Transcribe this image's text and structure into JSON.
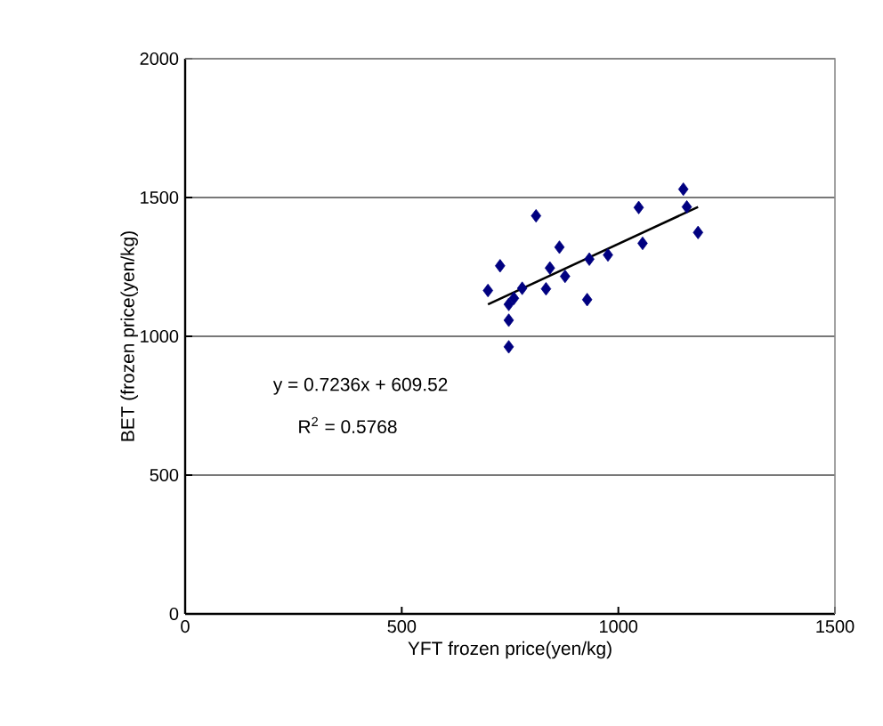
{
  "chart_data": {
    "type": "scatter",
    "xlabel": "YFT frozen price(yen/kg)",
    "ylabel": "BET (frozen price(yen/kg)",
    "xlim": [
      0,
      1500
    ],
    "ylim": [
      0,
      2000
    ],
    "xticks": [
      0,
      500,
      1000,
      1500
    ],
    "yticks": [
      0,
      500,
      1000,
      1500,
      2000
    ],
    "grid": "y",
    "marker": "diamond",
    "annotations": [
      "y = 0.7236x + 609.52",
      "R$^{2}$ = 0.5768"
    ],
    "series": [
      {
        "color": "#000080",
        "x": [
          699,
          727,
          810,
          747,
          759,
          747,
          747,
          778,
          833,
          842,
          864,
          877,
          933,
          928,
          976,
          1047,
          1056,
          1150,
          1158,
          1184
        ],
        "values": [
          1165,
          1254,
          1434,
          1115,
          1137,
          1058,
          962,
          1173,
          1171,
          1246,
          1321,
          1216,
          1278,
          1132,
          1293,
          1464,
          1335,
          1530,
          1466,
          1374
        ]
      },
      {
        "type": "line",
        "color": "#000000",
        "marker": "none",
        "x": [
          699,
          1184
        ],
        "values": [
          1115,
          1466
        ]
      }
    ]
  }
}
